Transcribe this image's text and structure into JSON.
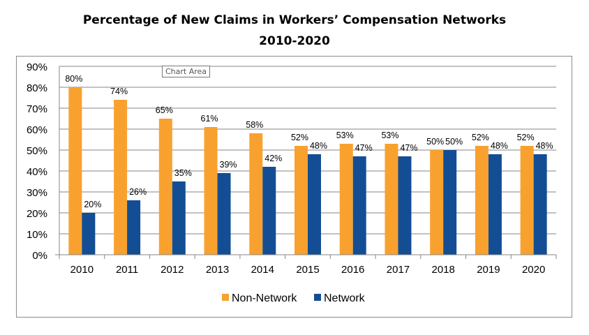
{
  "chart_data": {
    "type": "bar",
    "title": "Percentage of New Claims in Workers’ Compensation Networks",
    "subtitle": "2010-2020",
    "categories": [
      "2010",
      "2011",
      "2012",
      "2013",
      "2014",
      "2015",
      "2016",
      "2017",
      "2018",
      "2019",
      "2020"
    ],
    "series": [
      {
        "name": "Non-Network",
        "color": "#F9A12E",
        "values": [
          80,
          74,
          65,
          61,
          58,
          52,
          53,
          53,
          50,
          52,
          52
        ]
      },
      {
        "name": "Network",
        "color": "#134E94",
        "values": [
          20,
          26,
          35,
          39,
          42,
          48,
          47,
          47,
          50,
          48,
          48
        ]
      }
    ],
    "ylim": [
      0,
      90
    ],
    "yticks": [
      0,
      10,
      20,
      30,
      40,
      50,
      60,
      70,
      80,
      90
    ],
    "yformat": "%",
    "grid": true,
    "legend": "bottom",
    "data_labels": true
  },
  "tooltip": "Chart Area"
}
